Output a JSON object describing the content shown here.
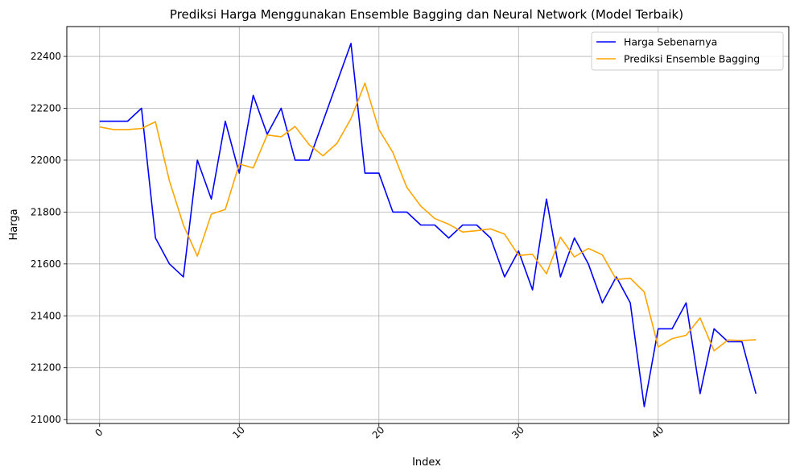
{
  "chart_data": {
    "type": "line",
    "title": "Prediksi Harga Menggunakan Ensemble Bagging dan Neural Network (Model Terbaik)",
    "xlabel": "Index",
    "ylabel": "Harga",
    "xlim": [
      -2.35,
      49.35
    ],
    "ylim": [
      20985,
      22515
    ],
    "xticks": [
      0,
      10,
      20,
      30,
      40
    ],
    "yticks": [
      21000,
      21200,
      21400,
      21600,
      21800,
      22000,
      22200,
      22400
    ],
    "xtick_rotation": 45,
    "grid": true,
    "legend_position": "upper right",
    "series": [
      {
        "name": "Harga Sebenarnya",
        "color": "#0000ff",
        "values": [
          22150,
          22150,
          22150,
          22200,
          21700,
          21600,
          21550,
          22000,
          21850,
          22150,
          21950,
          22250,
          22100,
          22200,
          22000,
          22000,
          22150,
          22300,
          22450,
          21950,
          21950,
          21800,
          21800,
          21750,
          21750,
          21700,
          21750,
          21750,
          21700,
          21550,
          21650,
          21500,
          21850,
          21550,
          21700,
          21600,
          21450,
          21550,
          21450,
          21050,
          21350,
          21350,
          21450,
          21100,
          21350,
          21300,
          21300,
          21100
        ]
      },
      {
        "name": "Prediksi Ensemble Bagging",
        "color": "#ffa500",
        "values": [
          22128,
          22118,
          22118,
          22122,
          22148,
          21920,
          21750,
          21630,
          21792,
          21810,
          21985,
          21970,
          22097,
          22090,
          22130,
          22060,
          22017,
          22065,
          22160,
          22297,
          22118,
          22030,
          21895,
          21823,
          21775,
          21753,
          21723,
          21728,
          21735,
          21715,
          21633,
          21637,
          21562,
          21703,
          21627,
          21660,
          21635,
          21540,
          21545,
          21492,
          21280,
          21312,
          21325,
          21392,
          21265,
          21307,
          21305,
          21308
        ]
      }
    ]
  }
}
